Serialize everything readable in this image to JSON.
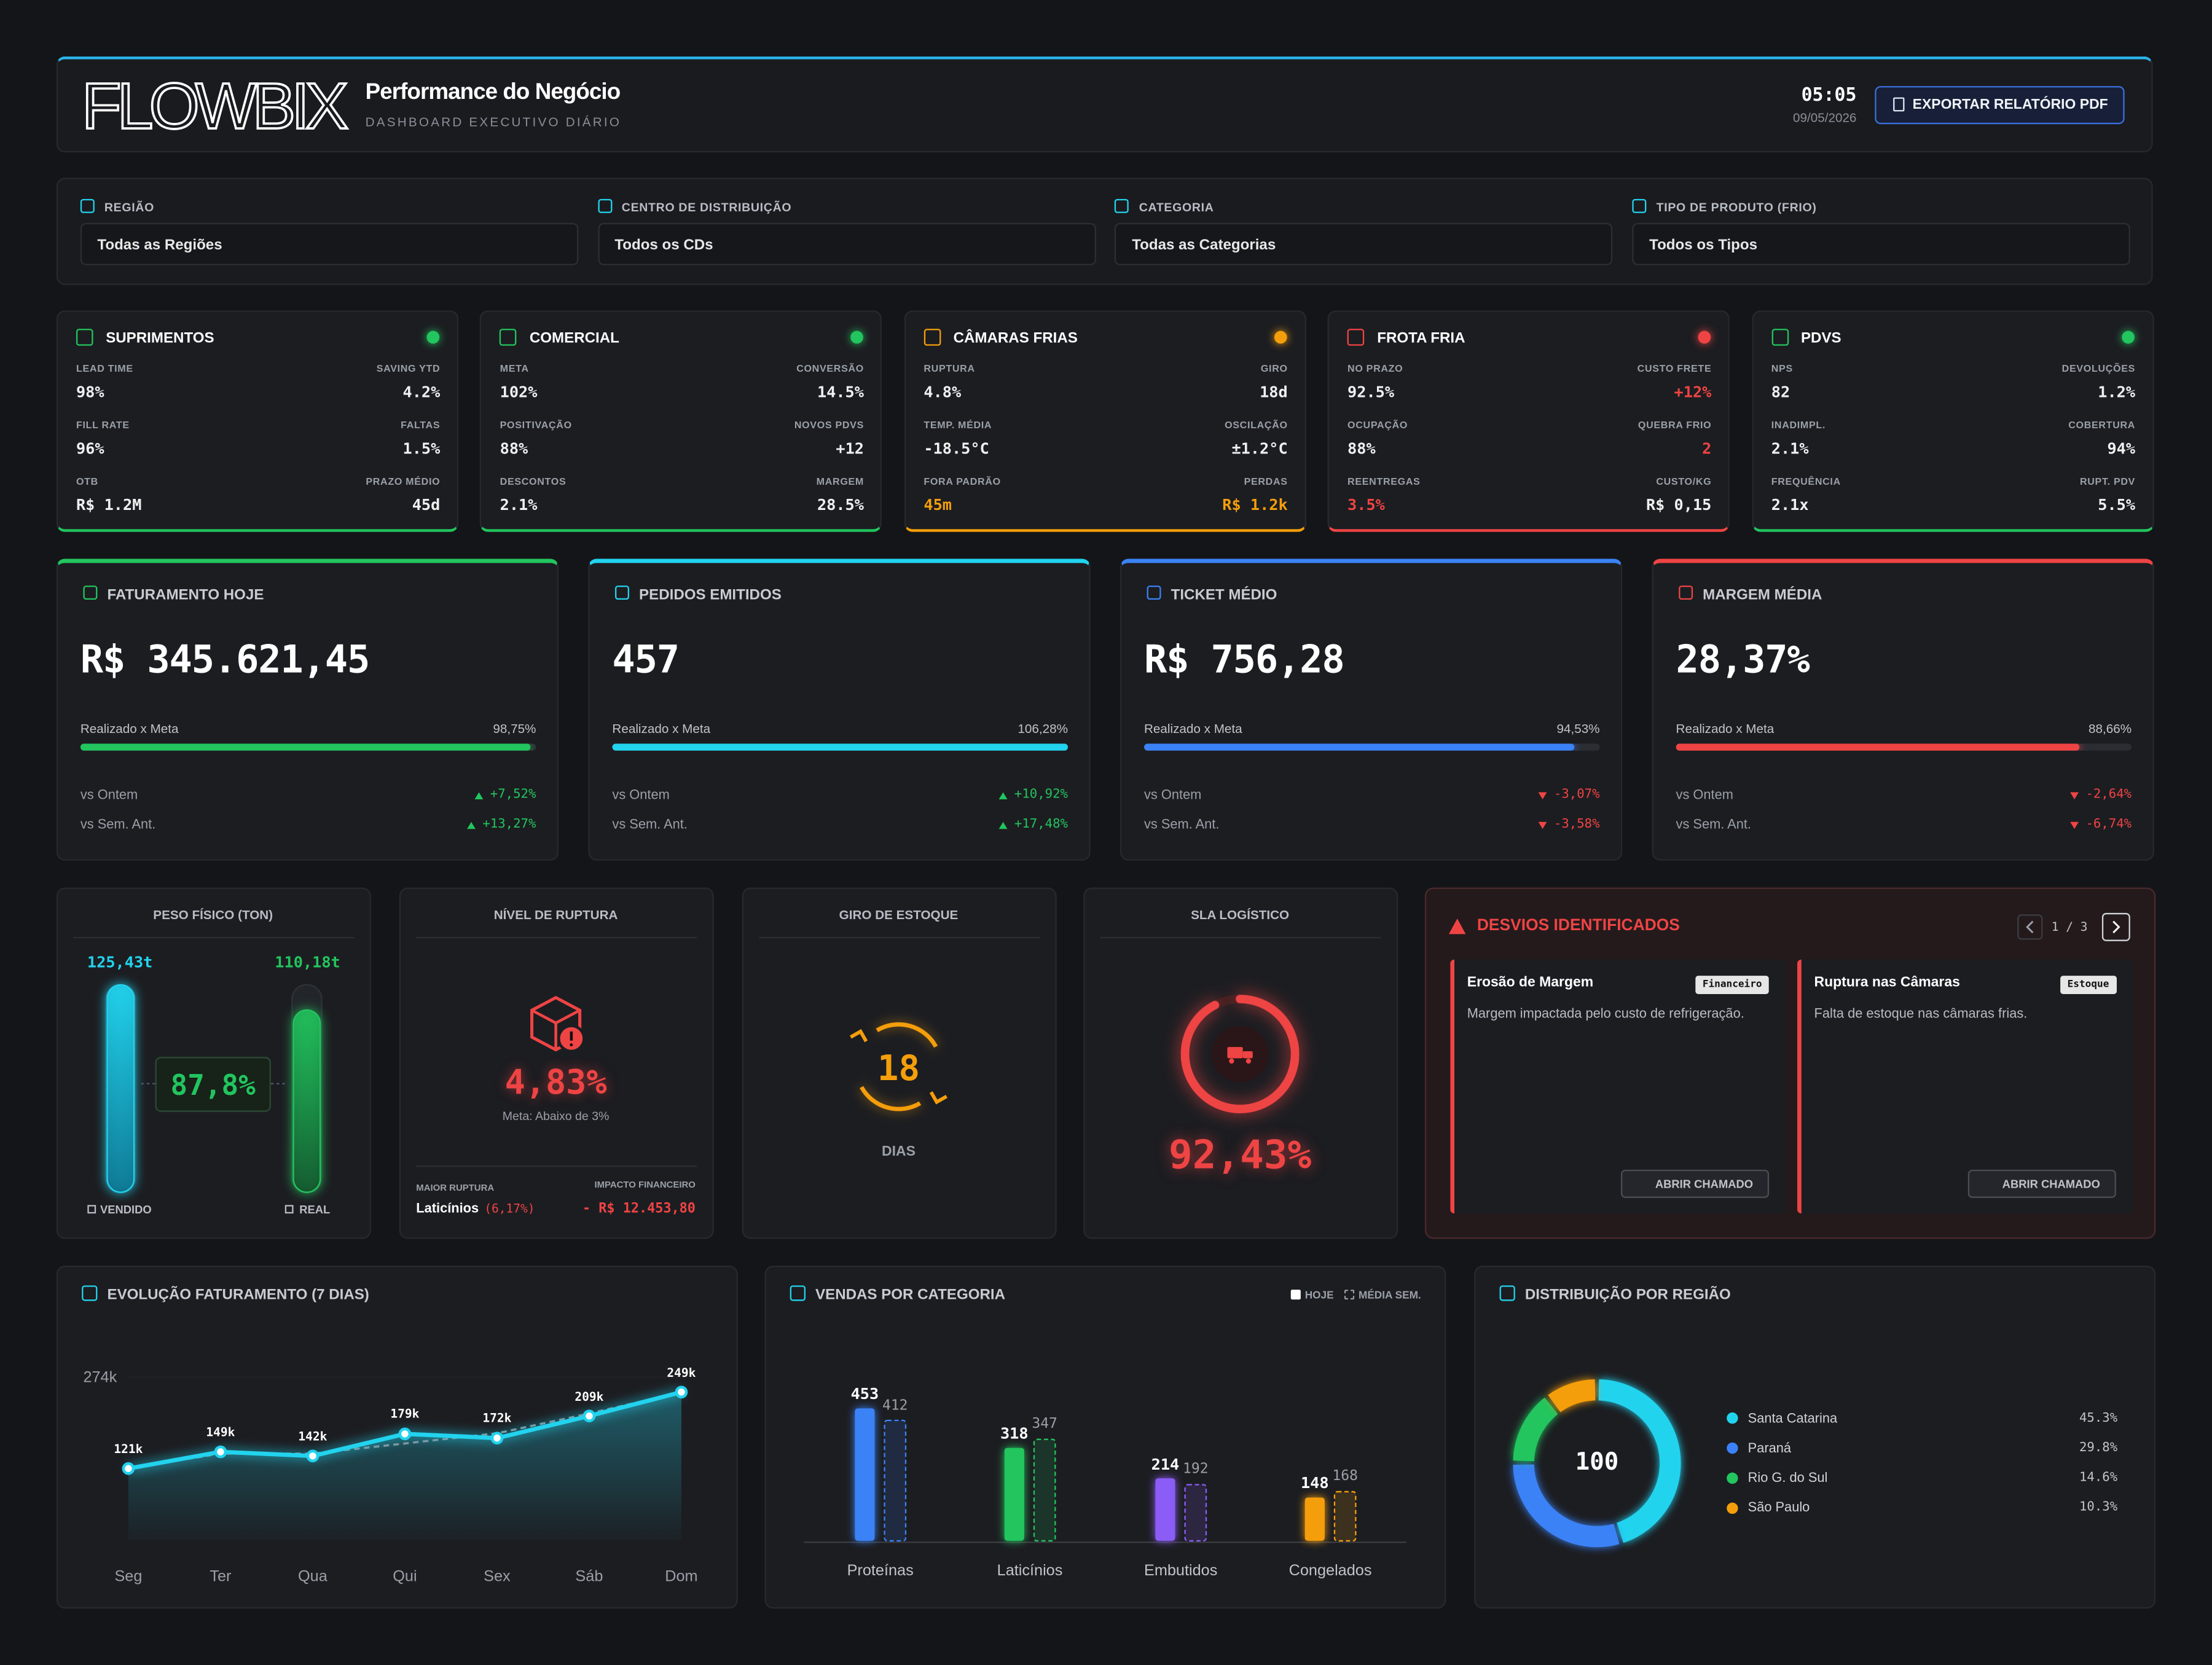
{
  "header": {
    "logo": "FLOWBIX",
    "title": "Performance do Negócio",
    "subtitle": "DASHBOARD EXECUTIVO DIÁRIO",
    "time": "05:05",
    "date": "09/05/2026",
    "export_button": "EXPORTAR RELATÓRIO PDF"
  },
  "filters": [
    {
      "label": "REGIÃO",
      "value": "Todas as Regiões"
    },
    {
      "label": "CENTRO DE DISTRIBUIÇÃO",
      "value": "Todos os CDs"
    },
    {
      "label": "CATEGORIA",
      "value": "Todas as Categorias"
    },
    {
      "label": "TIPO DE PRODUTO (FRIO)",
      "value": "Todos os Tipos"
    }
  ],
  "modules": [
    {
      "title": "SUPRIMENTOS",
      "color": "#22c55e",
      "metrics": [
        {
          "label": "LEAD TIME",
          "value": "98%"
        },
        {
          "label": "SAVING YTD",
          "value": "4.2%"
        },
        {
          "label": "FILL RATE",
          "value": "96%"
        },
        {
          "label": "FALTAS",
          "value": "1.5%"
        },
        {
          "label": "OTB",
          "value": "R$ 1.2M"
        },
        {
          "label": "PRAZO MÉDIO",
          "value": "45d"
        }
      ]
    },
    {
      "title": "COMERCIAL",
      "color": "#22c55e",
      "metrics": [
        {
          "label": "META",
          "value": "102%"
        },
        {
          "label": "CONVERSÃO",
          "value": "14.5%"
        },
        {
          "label": "POSITIVAÇÃO",
          "value": "88%"
        },
        {
          "label": "NOVOS PDVS",
          "value": "+12"
        },
        {
          "label": "DESCONTOS",
          "value": "2.1%"
        },
        {
          "label": "MARGEM",
          "value": "28.5%"
        }
      ]
    },
    {
      "title": "CÂMARAS FRIAS",
      "color": "#f59e0b",
      "metrics": [
        {
          "label": "RUPTURA",
          "value": "4.8%"
        },
        {
          "label": "GIRO",
          "value": "18d"
        },
        {
          "label": "TEMP. MÉDIA",
          "value": "-18.5°C"
        },
        {
          "label": "OSCILAÇÃO",
          "value": "±1.2°C"
        },
        {
          "label": "FORA PADRÃO",
          "value": "45m",
          "alert": true
        },
        {
          "label": "PERDAS",
          "value": "R$ 1.2k",
          "alert": true
        }
      ]
    },
    {
      "title": "FROTA FRIA",
      "color": "#ef4444",
      "metrics": [
        {
          "label": "NO PRAZO",
          "value": "92.5%"
        },
        {
          "label": "CUSTO FRETE",
          "value": "+12%",
          "alert": true
        },
        {
          "label": "OCUPAÇÃO",
          "value": "88%"
        },
        {
          "label": "QUEBRA FRIO",
          "value": "2",
          "alert": true
        },
        {
          "label": "REENTREGAS",
          "value": "3.5%",
          "alert": true
        },
        {
          "label": "CUSTO/KG",
          "value": "R$ 0,15"
        }
      ]
    },
    {
      "title": "PDVS",
      "color": "#22c55e",
      "metrics": [
        {
          "label": "NPS",
          "value": "82"
        },
        {
          "label": "DEVOLUÇÕES",
          "value": "1.2%"
        },
        {
          "label": "INADIMPL.",
          "value": "2.1%"
        },
        {
          "label": "COBERTURA",
          "value": "94%"
        },
        {
          "label": "FREQUÊNCIA",
          "value": "2.1x"
        },
        {
          "label": "RUPT. PDV",
          "value": "5.5%"
        }
      ]
    }
  ],
  "kpis": [
    {
      "title": "FATURAMENTO HOJE",
      "value": "R$ 345.621,45",
      "color": "#22c55e",
      "progress_label": "Realizado x Meta",
      "progress": 98.75,
      "progress_text": "98,75%",
      "comparisons": [
        {
          "label": "vs Ontem",
          "value": "+7,52%"
        },
        {
          "label": "vs Sem. Ant.",
          "value": "+13,27%"
        }
      ]
    },
    {
      "title": "PEDIDOS EMITIDOS",
      "value": "457",
      "color": "#22d3ee",
      "progress_label": "Realizado x Meta",
      "progress": 106.28,
      "progress_text": "106,28%",
      "comparisons": [
        {
          "label": "vs Ontem",
          "value": "+10,92%"
        },
        {
          "label": "vs Sem. Ant.",
          "value": "+17,48%"
        }
      ]
    },
    {
      "title": "TICKET MÉDIO",
      "value": "R$ 756,28",
      "color": "#3b82f6",
      "progress_label": "Realizado x Meta",
      "progress": 94.53,
      "progress_text": "94,53%",
      "comparisons": [
        {
          "label": "vs Ontem",
          "value": "-3,07%"
        },
        {
          "label": "vs Sem. Ant.",
          "value": "-3,58%"
        }
      ]
    },
    {
      "title": "MARGEM MÉDIA",
      "value": "28,37%",
      "color": "#ef4444",
      "progress_label": "Realizado x Meta",
      "progress": 88.66,
      "progress_text": "88,66%",
      "comparisons": [
        {
          "label": "vs Ontem",
          "value": "-2,64%"
        },
        {
          "label": "vs Sem. Ant.",
          "value": "-6,74%"
        }
      ]
    }
  ],
  "physical_weight": {
    "title": "PESO FÍSICO (TON)",
    "sold": 125.43,
    "sold_label": "125,43t",
    "real": 110.18,
    "real_label": "110,18t",
    "ratio": "87,8%",
    "sold_caption": "VENDIDO",
    "real_caption": "REAL"
  },
  "rupture": {
    "title": "NÍVEL DE RUPTURA",
    "value": "4,83%",
    "note": "Meta: Abaixo de 3%",
    "top_label": "MAIOR RUPTURA",
    "top_category": "Laticínios",
    "top_share": "(6,17%)",
    "impact_label": "IMPACTO FINANCEIRO",
    "impact": "- R$ 12.453,80"
  },
  "turnover": {
    "title": "GIRO DE ESTOQUE",
    "value": "18",
    "unit": "DIAS"
  },
  "sla": {
    "title": "SLA LOGÍSTICO",
    "value": 92.43,
    "value_label": "92,43%"
  },
  "deviations": {
    "title": "DESVIOS IDENTIFICADOS",
    "pager": "1 / 3",
    "items": [
      {
        "title": "Erosão de Margem",
        "tag": "Financeiro",
        "text": "Margem impactada pelo custo de refrigeração.",
        "button": "ABRIR CHAMADO"
      },
      {
        "title": "Ruptura nas Câmaras",
        "tag": "Estoque",
        "text": "Falta de estoque nas câmaras frias.",
        "button": "ABRIR CHAMADO"
      }
    ]
  },
  "chart_data": [
    {
      "type": "line",
      "title": "EVOLUÇÃO FATURAMENTO (7 DIAS)",
      "categories": [
        "Seg",
        "Ter",
        "Qua",
        "Qui",
        "Sex",
        "Sáb",
        "Dom"
      ],
      "series": [
        {
          "color": "#22d3ee",
          "values": [
            121,
            149,
            142,
            179,
            172,
            209,
            249
          ],
          "value_labels": [
            "121k",
            "149k",
            "142k",
            "179k",
            "172k",
            "209k",
            "249k"
          ]
        },
        {
          "color": "#8b9099",
          "dashed": true,
          "values": [
            121,
            146,
            146,
            163,
            180,
            213,
            249
          ]
        }
      ],
      "ylim": [
        0,
        274
      ],
      "yticks": [
        {
          "value": 274,
          "label": "274k"
        }
      ]
    },
    {
      "type": "bar",
      "title": "VENDAS POR CATEGORIA",
      "categories": [
        "Proteínas",
        "Laticínios",
        "Embutidos",
        "Congelados"
      ],
      "colors": [
        "#3b82f6",
        "#22c55e",
        "#8b5cf6",
        "#f59e0b"
      ],
      "series": [
        {
          "name": "HOJE",
          "values": [
            453,
            318,
            214,
            148
          ]
        },
        {
          "name": "MÉDIA SEM.",
          "dashed": true,
          "values": [
            412,
            347,
            192,
            168
          ]
        }
      ],
      "ylim": [
        0,
        500
      ]
    },
    {
      "type": "donut",
      "title": "DISTRIBUIÇÃO POR REGIÃO",
      "center_label": "100",
      "categories": [
        "Santa Catarina",
        "Paraná",
        "Rio G. do Sul",
        "São Paulo"
      ],
      "values": [
        45.3,
        29.8,
        14.6,
        10.3
      ],
      "value_labels": [
        "45.3%",
        "29.8%",
        "14.6%",
        "10.3%"
      ],
      "colors": [
        "#22d3ee",
        "#3b82f6",
        "#22c55e",
        "#f59e0b"
      ]
    }
  ]
}
